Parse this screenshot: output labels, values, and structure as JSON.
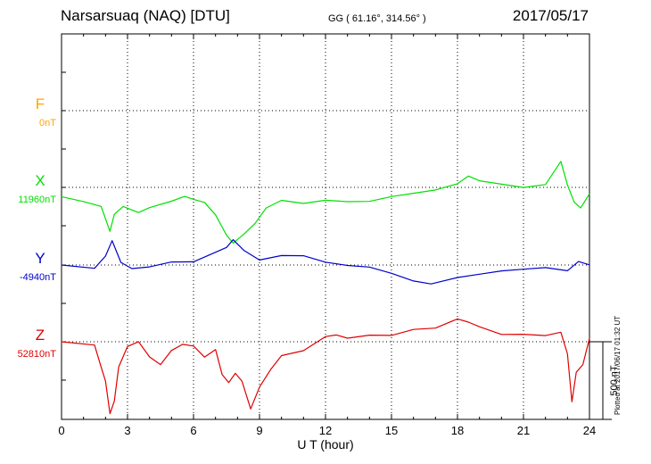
{
  "header": {
    "title": "Narsarsuaq (NAQ)  [DTU]",
    "coords": "GG ( 61.16°, 314.56° )",
    "date": "2017/05/17"
  },
  "side_note": "Plotted at 2017/06/17 01:32 UT",
  "chart_data": {
    "type": "line",
    "xlabel": "U T (hour)",
    "xlim": [
      0,
      24
    ],
    "xticks": [
      0,
      3,
      6,
      9,
      12,
      15,
      18,
      21,
      24
    ],
    "scale_bar": {
      "label": "500 nT",
      "value_nT": 500
    },
    "components": [
      {
        "name": "F",
        "baseline": "0nT",
        "color": "#ffa500"
      },
      {
        "name": "X",
        "baseline": "11960nT",
        "color": "#00e000"
      },
      {
        "name": "Y",
        "baseline": "-4940nT",
        "color": "#0000cc"
      },
      {
        "name": "Z",
        "baseline": "52810nT",
        "color": "#e00000"
      }
    ],
    "series": [
      {
        "name": "X",
        "x": [
          0,
          1.0,
          1.8,
          2.2,
          2.4,
          2.8,
          3.5,
          4.0,
          5.0,
          5.6,
          6.0,
          6.5,
          7.0,
          7.5,
          7.8,
          8.3,
          8.8,
          9.3,
          10,
          11,
          12,
          13,
          14,
          15,
          16,
          17,
          18,
          18.5,
          19,
          20,
          21,
          22,
          22.7,
          23.0,
          23.3,
          23.6,
          24
        ],
        "values": [
          -60,
          -90,
          -120,
          -280,
          -170,
          -120,
          -160,
          -130,
          -90,
          -60,
          -80,
          -100,
          -180,
          -310,
          -360,
          -300,
          -230,
          -130,
          -80,
          -100,
          -80,
          -90,
          -90,
          -60,
          -40,
          -20,
          20,
          70,
          40,
          20,
          0,
          20,
          170,
          20,
          -90,
          -130,
          -40
        ]
      },
      {
        "name": "Y",
        "x": [
          0,
          1.5,
          2.0,
          2.3,
          2.7,
          3.2,
          4.0,
          5.0,
          6.0,
          7.0,
          7.5,
          7.8,
          8.3,
          9.0,
          10,
          11,
          12,
          13,
          14,
          15,
          16,
          16.8,
          18,
          19,
          20,
          21,
          22,
          23.0,
          23.5,
          24
        ],
        "values": [
          0,
          -20,
          60,
          160,
          20,
          -20,
          -10,
          20,
          20,
          80,
          110,
          160,
          90,
          30,
          60,
          60,
          20,
          0,
          -10,
          -50,
          -100,
          -120,
          -80,
          -60,
          -40,
          -30,
          -20,
          -40,
          20,
          0
        ]
      },
      {
        "name": "Z",
        "x": [
          0,
          1.5,
          1.8,
          2.0,
          2.2,
          2.4,
          2.6,
          3.0,
          3.5,
          4.0,
          4.5,
          5.0,
          5.5,
          6.0,
          6.5,
          7.0,
          7.3,
          7.6,
          7.9,
          8.2,
          8.6,
          9.0,
          9.5,
          10,
          11,
          12,
          12.5,
          13,
          14,
          15,
          16,
          17,
          18,
          18.5,
          19,
          20,
          21,
          22,
          22.7,
          23.0,
          23.2,
          23.4,
          23.7,
          24
        ],
        "values": [
          0,
          -20,
          -160,
          -250,
          -460,
          -380,
          -160,
          -30,
          0,
          -100,
          -150,
          -60,
          -20,
          -30,
          -100,
          -50,
          -210,
          -260,
          -200,
          -250,
          -430,
          -290,
          -180,
          -90,
          -60,
          30,
          40,
          20,
          40,
          40,
          80,
          90,
          150,
          130,
          100,
          50,
          50,
          40,
          60,
          -80,
          -390,
          -200,
          -150,
          20
        ]
      }
    ]
  }
}
